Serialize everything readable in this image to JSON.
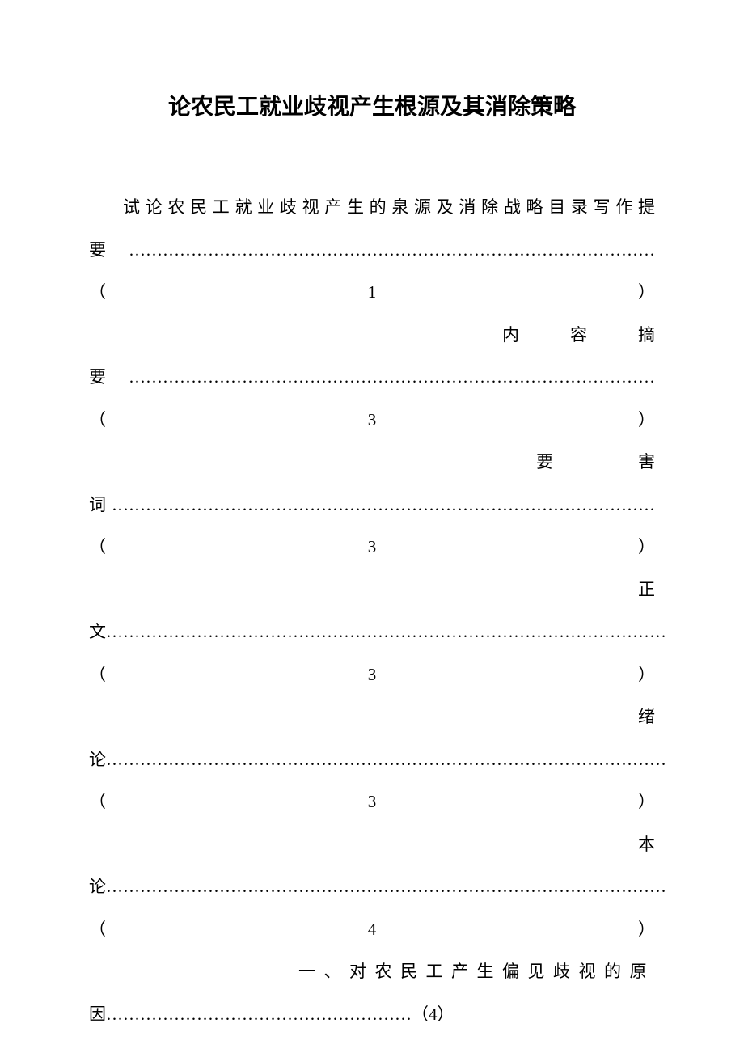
{
  "document": {
    "title": "论农民工就业歧视产生根源及其消除策略",
    "intro_text": "试论农民工就业歧视产生的泉源及消除战略目录写作提",
    "toc_entries": [
      {
        "prefix": "要",
        "dots": "…………………………………………………………………………………",
        "page": "（1）"
      },
      {
        "label_line": "内　　　容　　　摘",
        "prefix": "要",
        "dots": "…………………………………………………………………………………",
        "page": "（3）"
      },
      {
        "label_line": "要　　　　　害",
        "prefix": "词",
        "dots": "……………………………………………………………………………………",
        "page": "（3）"
      },
      {
        "label_line": "正",
        "prefix": "文",
        "dots": "………………………………………………………………………………………",
        "page": "（3）"
      },
      {
        "label_line": "绪",
        "prefix": "论",
        "dots": "………………………………………………………………………………………",
        "page": "（3）"
      },
      {
        "label_line": "本",
        "prefix": "论",
        "dots": "………………………………………………………………………………………",
        "page": "（4）"
      }
    ],
    "last_entry": {
      "label": "一、对农民工产生偏见歧视的原",
      "prefix": "因",
      "dots": "………………………………………………",
      "page": "（4）"
    }
  },
  "styles": {
    "background_color": "#ffffff",
    "text_color": "#000000",
    "title_fontsize": 28,
    "body_fontsize": 21,
    "line_height": 2.5
  }
}
